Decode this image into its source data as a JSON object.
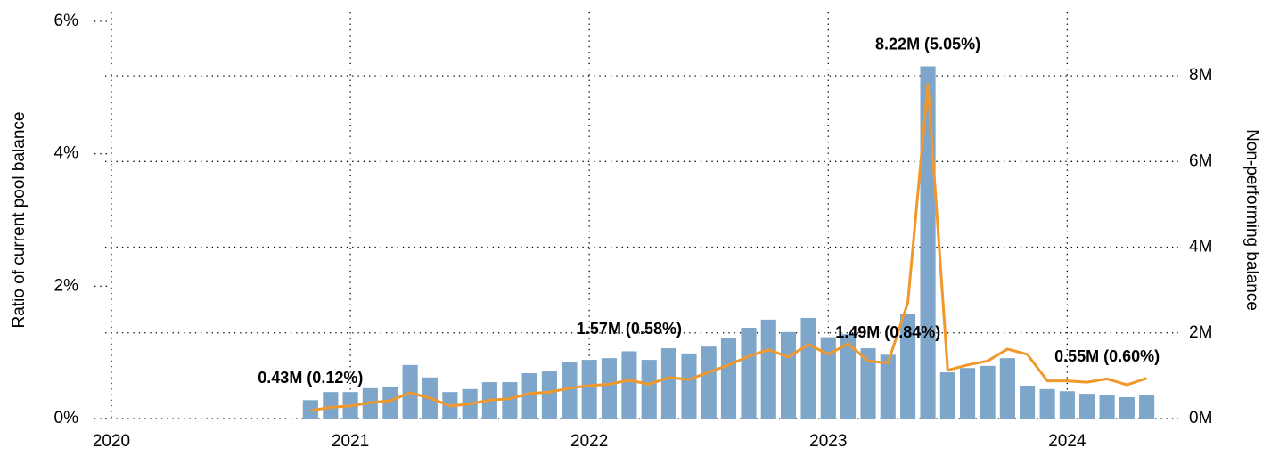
{
  "chart_data": {
    "type": "bar",
    "y_label": "Ratio of current pool balance",
    "y2_label": "Non-performing balance",
    "x": [
      2020.833,
      2020.917,
      2021.0,
      2021.083,
      2021.167,
      2021.25,
      2021.333,
      2021.417,
      2021.5,
      2021.583,
      2021.667,
      2021.75,
      2021.833,
      2021.917,
      2022.0,
      2022.083,
      2022.167,
      2022.25,
      2022.333,
      2022.417,
      2022.5,
      2022.583,
      2022.667,
      2022.75,
      2022.833,
      2022.917,
      2023.0,
      2023.083,
      2023.167,
      2023.25,
      2023.333,
      2023.417,
      2023.5,
      2023.583,
      2023.667,
      2023.75,
      2023.833,
      2023.917,
      2024.0,
      2024.083,
      2024.167,
      2024.25,
      2024.333
    ],
    "series": [
      {
        "type": "bar",
        "axis": "y2",
        "color": "#7ea5ca",
        "values": [
          0.43,
          0.62,
          0.62,
          0.71,
          0.75,
          1.25,
          0.96,
          0.62,
          0.69,
          0.85,
          0.85,
          1.06,
          1.1,
          1.31,
          1.37,
          1.41,
          1.57,
          1.37,
          1.64,
          1.52,
          1.68,
          1.87,
          2.12,
          2.31,
          2.02,
          2.35,
          1.9,
          1.97,
          1.64,
          1.49,
          2.45,
          8.22,
          1.08,
          1.18,
          1.23,
          1.41,
          0.77,
          0.69,
          0.64,
          0.58,
          0.55,
          0.5,
          0.54
        ],
        "value_labels": [
          "0.43M (0.12%)",
          null,
          null,
          null,
          null,
          null,
          null,
          null,
          null,
          null,
          null,
          null,
          null,
          null,
          null,
          null,
          "1.57M (0.58%)",
          null,
          null,
          null,
          null,
          null,
          null,
          null,
          null,
          null,
          null,
          null,
          null,
          "1.49M (0.84%)",
          null,
          "8.22M (5.05%)",
          null,
          null,
          null,
          null,
          null,
          null,
          null,
          null,
          "0.55M (0.60%)",
          null,
          null
        ]
      },
      {
        "type": "line",
        "axis": "y",
        "color": "#f0982c",
        "values": [
          0.12,
          0.17,
          0.19,
          0.24,
          0.27,
          0.39,
          0.31,
          0.19,
          0.22,
          0.28,
          0.3,
          0.38,
          0.4,
          0.46,
          0.5,
          0.52,
          0.58,
          0.52,
          0.62,
          0.59,
          0.7,
          0.81,
          0.94,
          1.04,
          0.93,
          1.12,
          0.97,
          1.13,
          0.87,
          0.84,
          1.75,
          5.05,
          0.73,
          0.81,
          0.87,
          1.05,
          0.97,
          0.57,
          0.57,
          0.55,
          0.6,
          0.51,
          0.61
        ]
      }
    ],
    "xlim": [
      2020,
      2024.45
    ],
    "xticks": [
      2020,
      2021,
      2022,
      2023,
      2024
    ],
    "ylim": [
      0,
      6
    ],
    "yticks": [
      {
        "value": 0,
        "label": "0%"
      },
      {
        "value": 2,
        "label": "2%"
      },
      {
        "value": 4,
        "label": "4%"
      },
      {
        "value": 6,
        "label": "6%"
      }
    ],
    "y2lim": [
      0,
      9.27
    ],
    "y2ticks": [
      {
        "value": 0,
        "label": "0M"
      },
      {
        "value": 2,
        "label": "2M"
      },
      {
        "value": 4,
        "label": "4M"
      },
      {
        "value": 6,
        "label": "6M"
      },
      {
        "value": 8,
        "label": "8M"
      }
    ],
    "grid": true
  }
}
